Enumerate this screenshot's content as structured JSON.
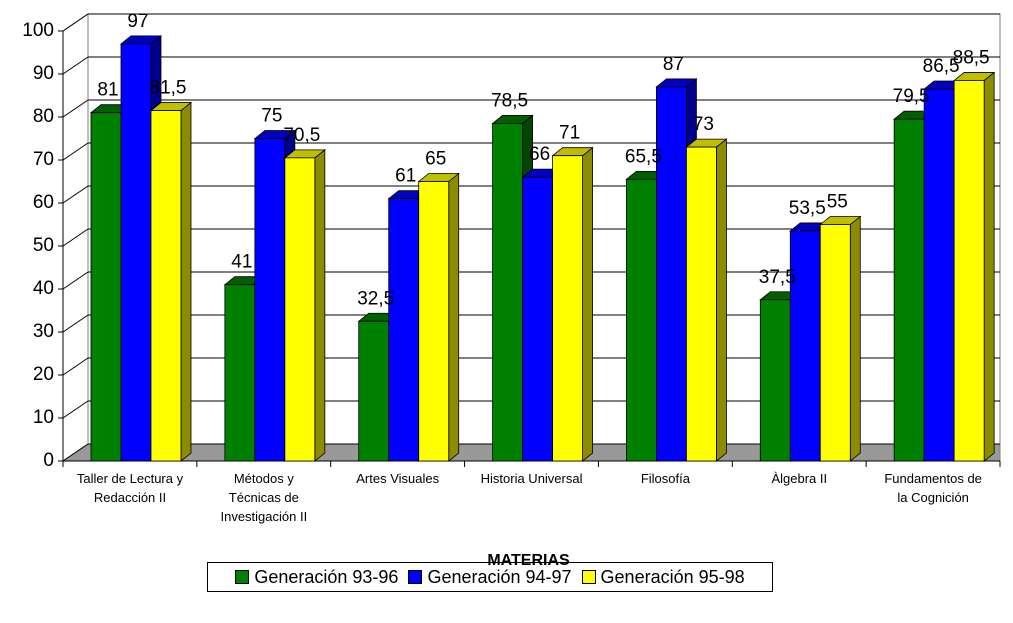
{
  "chart_data": {
    "type": "bar3d",
    "xlabel": "MATERIAS",
    "categories": [
      "Taller de Lectura y\nRedacción II",
      "Métodos y\nTécnicas de\nInvestigación II",
      "Artes Visuales",
      "Historia Universal",
      "Filosofía",
      "Àlgebra II",
      "Fundamentos de\nla Cognición"
    ],
    "series": [
      {
        "name": "Generación 93-96",
        "color": "#008000",
        "values": [
          81,
          41,
          32.5,
          78.5,
          65.5,
          37.5,
          79.5
        ],
        "value_labels": [
          "81",
          "41",
          "32,5",
          "78,5",
          "65,5",
          "37,5",
          "79,5"
        ]
      },
      {
        "name": "Generación 94-97",
        "color": "#0000ff",
        "values": [
          97,
          75,
          61,
          66,
          87,
          53.5,
          86.5
        ],
        "value_labels": [
          "97",
          "75",
          "61",
          "66",
          "87",
          "53,5",
          "86,5"
        ]
      },
      {
        "name": "Generación 95-98",
        "color": "#ffff00",
        "values": [
          81.5,
          70.5,
          65,
          71,
          73,
          55,
          88.5
        ],
        "value_labels": [
          "81,5",
          "70,5",
          "65",
          "71",
          "73",
          "55",
          "88,5"
        ]
      }
    ],
    "ylim": [
      0,
      100
    ],
    "yticks": [
      0,
      10,
      20,
      30,
      40,
      50,
      60,
      70,
      80,
      90,
      100
    ],
    "grid": true,
    "legend": "bottom"
  }
}
